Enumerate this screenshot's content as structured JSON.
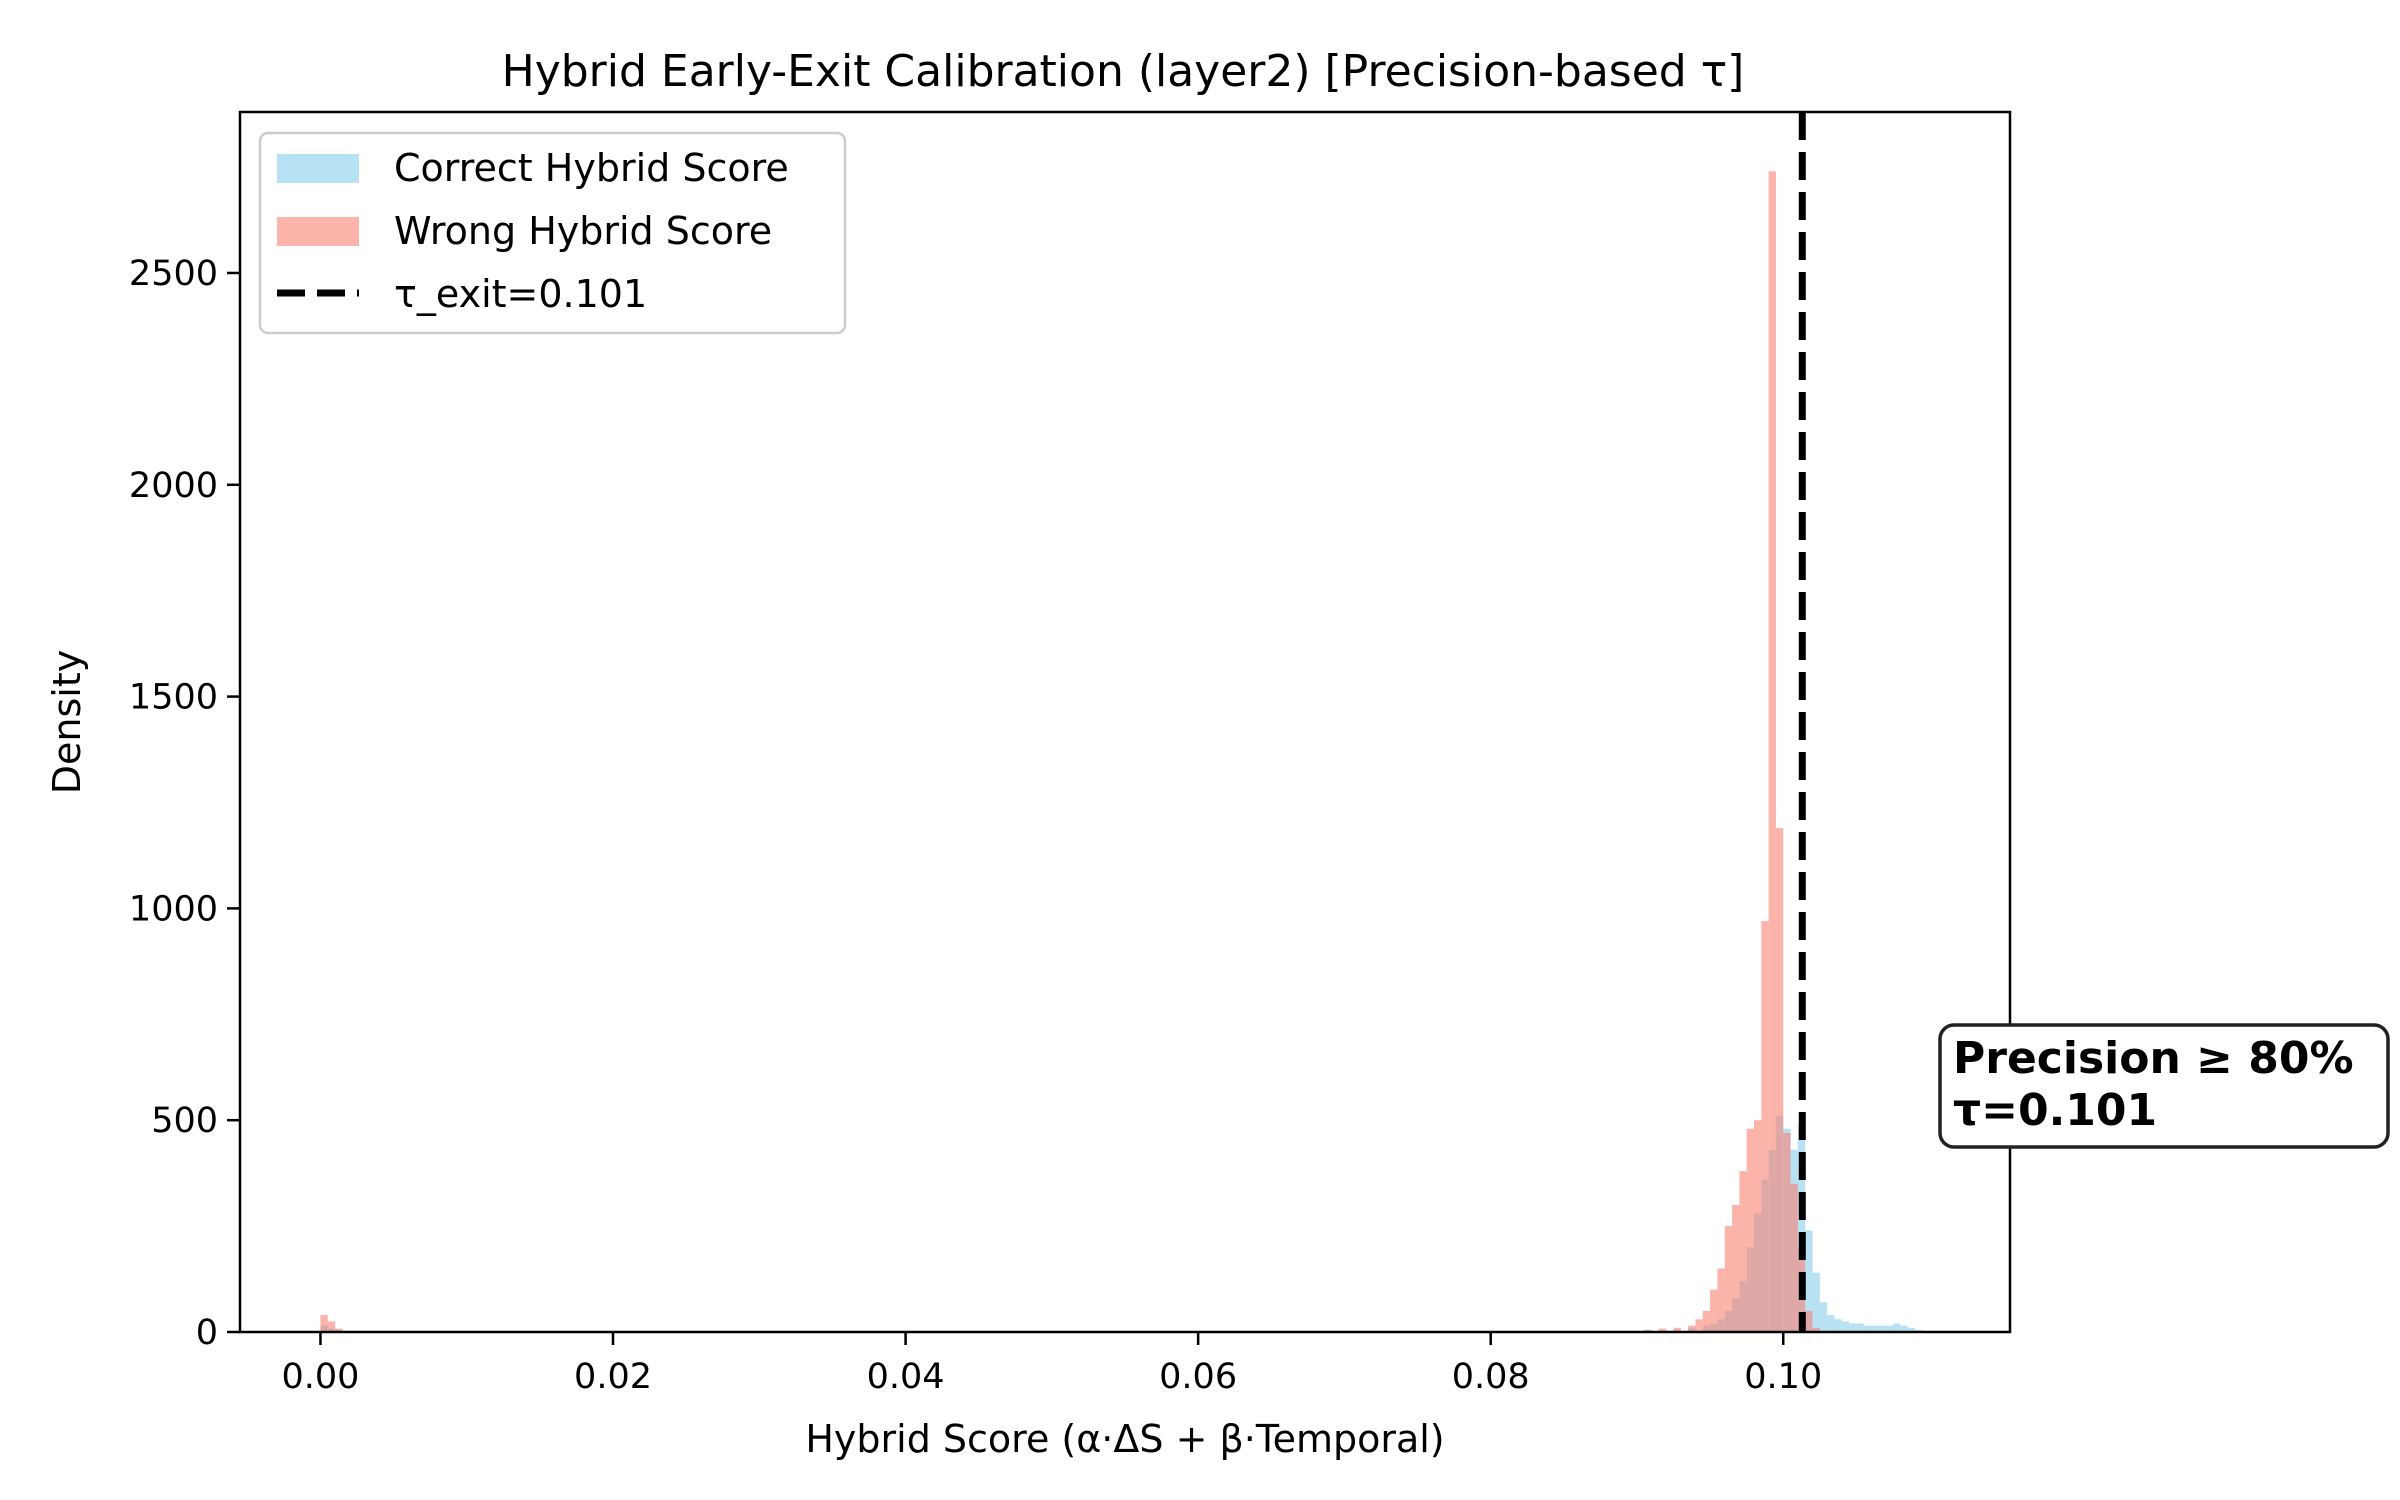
{
  "chart_data": {
    "type": "histogram",
    "title": "Hybrid Early-Exit Calibration (layer2) [Precision-based τ]",
    "xlabel": "Hybrid Score (α·ΔS + β·Temporal)",
    "ylabel": "Density",
    "xlim": [
      -0.0055,
      0.1155
    ],
    "ylim": [
      0,
      2880
    ],
    "x_ticks": [
      0.0,
      0.02,
      0.04,
      0.06,
      0.08,
      0.1
    ],
    "x_tick_labels": [
      "0.00",
      "0.02",
      "0.04",
      "0.06",
      "0.08",
      "0.10"
    ],
    "y_ticks": [
      0,
      500,
      1000,
      1500,
      2000,
      2500
    ],
    "y_tick_labels": [
      "0",
      "500",
      "1000",
      "1500",
      "2000",
      "2500"
    ],
    "bin_width": 0.0005,
    "grid": false,
    "legend_position": "upper-left",
    "series": [
      {
        "name": "Correct Hybrid Score",
        "color": "#87CEEB",
        "opacity": 0.6,
        "bins_x": [
          0.0,
          0.0005,
          0.001,
          0.0015,
          0.0905,
          0.0925,
          0.0935,
          0.0945,
          0.095,
          0.0955,
          0.096,
          0.0965,
          0.097,
          0.0975,
          0.098,
          0.0985,
          0.099,
          0.0995,
          0.1,
          0.1005,
          0.101,
          0.1015,
          0.102,
          0.1025,
          0.103,
          0.1035,
          0.104,
          0.1045,
          0.105,
          0.1055,
          0.106,
          0.1065,
          0.107,
          0.1075,
          0.108,
          0.1085,
          0.109
        ],
        "density": [
          15,
          8,
          5,
          3,
          5,
          5,
          10,
          15,
          20,
          30,
          50,
          80,
          120,
          200,
          280,
          360,
          430,
          510,
          480,
          430,
          490,
          240,
          140,
          70,
          40,
          30,
          25,
          20,
          20,
          15,
          15,
          15,
          15,
          20,
          15,
          10,
          5
        ]
      },
      {
        "name": "Wrong Hybrid Score",
        "color": "#FA8072",
        "opacity": 0.6,
        "bins_x": [
          0.0,
          0.0005,
          0.001,
          0.0905,
          0.0915,
          0.0925,
          0.0935,
          0.094,
          0.0945,
          0.095,
          0.0955,
          0.096,
          0.0965,
          0.097,
          0.0975,
          0.098,
          0.0985,
          0.099,
          0.0995,
          0.1,
          0.1005,
          0.101,
          0.1015,
          0.102
        ],
        "density": [
          40,
          25,
          8,
          5,
          8,
          10,
          15,
          30,
          50,
          100,
          150,
          250,
          300,
          380,
          480,
          500,
          970,
          2740,
          1190,
          470,
          350,
          200,
          50,
          10
        ]
      }
    ],
    "threshold_line": {
      "label": "τ_exit=0.101",
      "x": 0.1013,
      "color": "#000000",
      "style": "dashed"
    },
    "annotation": {
      "line1": "Precision ≥ 80%",
      "line2": "τ=0.101"
    }
  }
}
